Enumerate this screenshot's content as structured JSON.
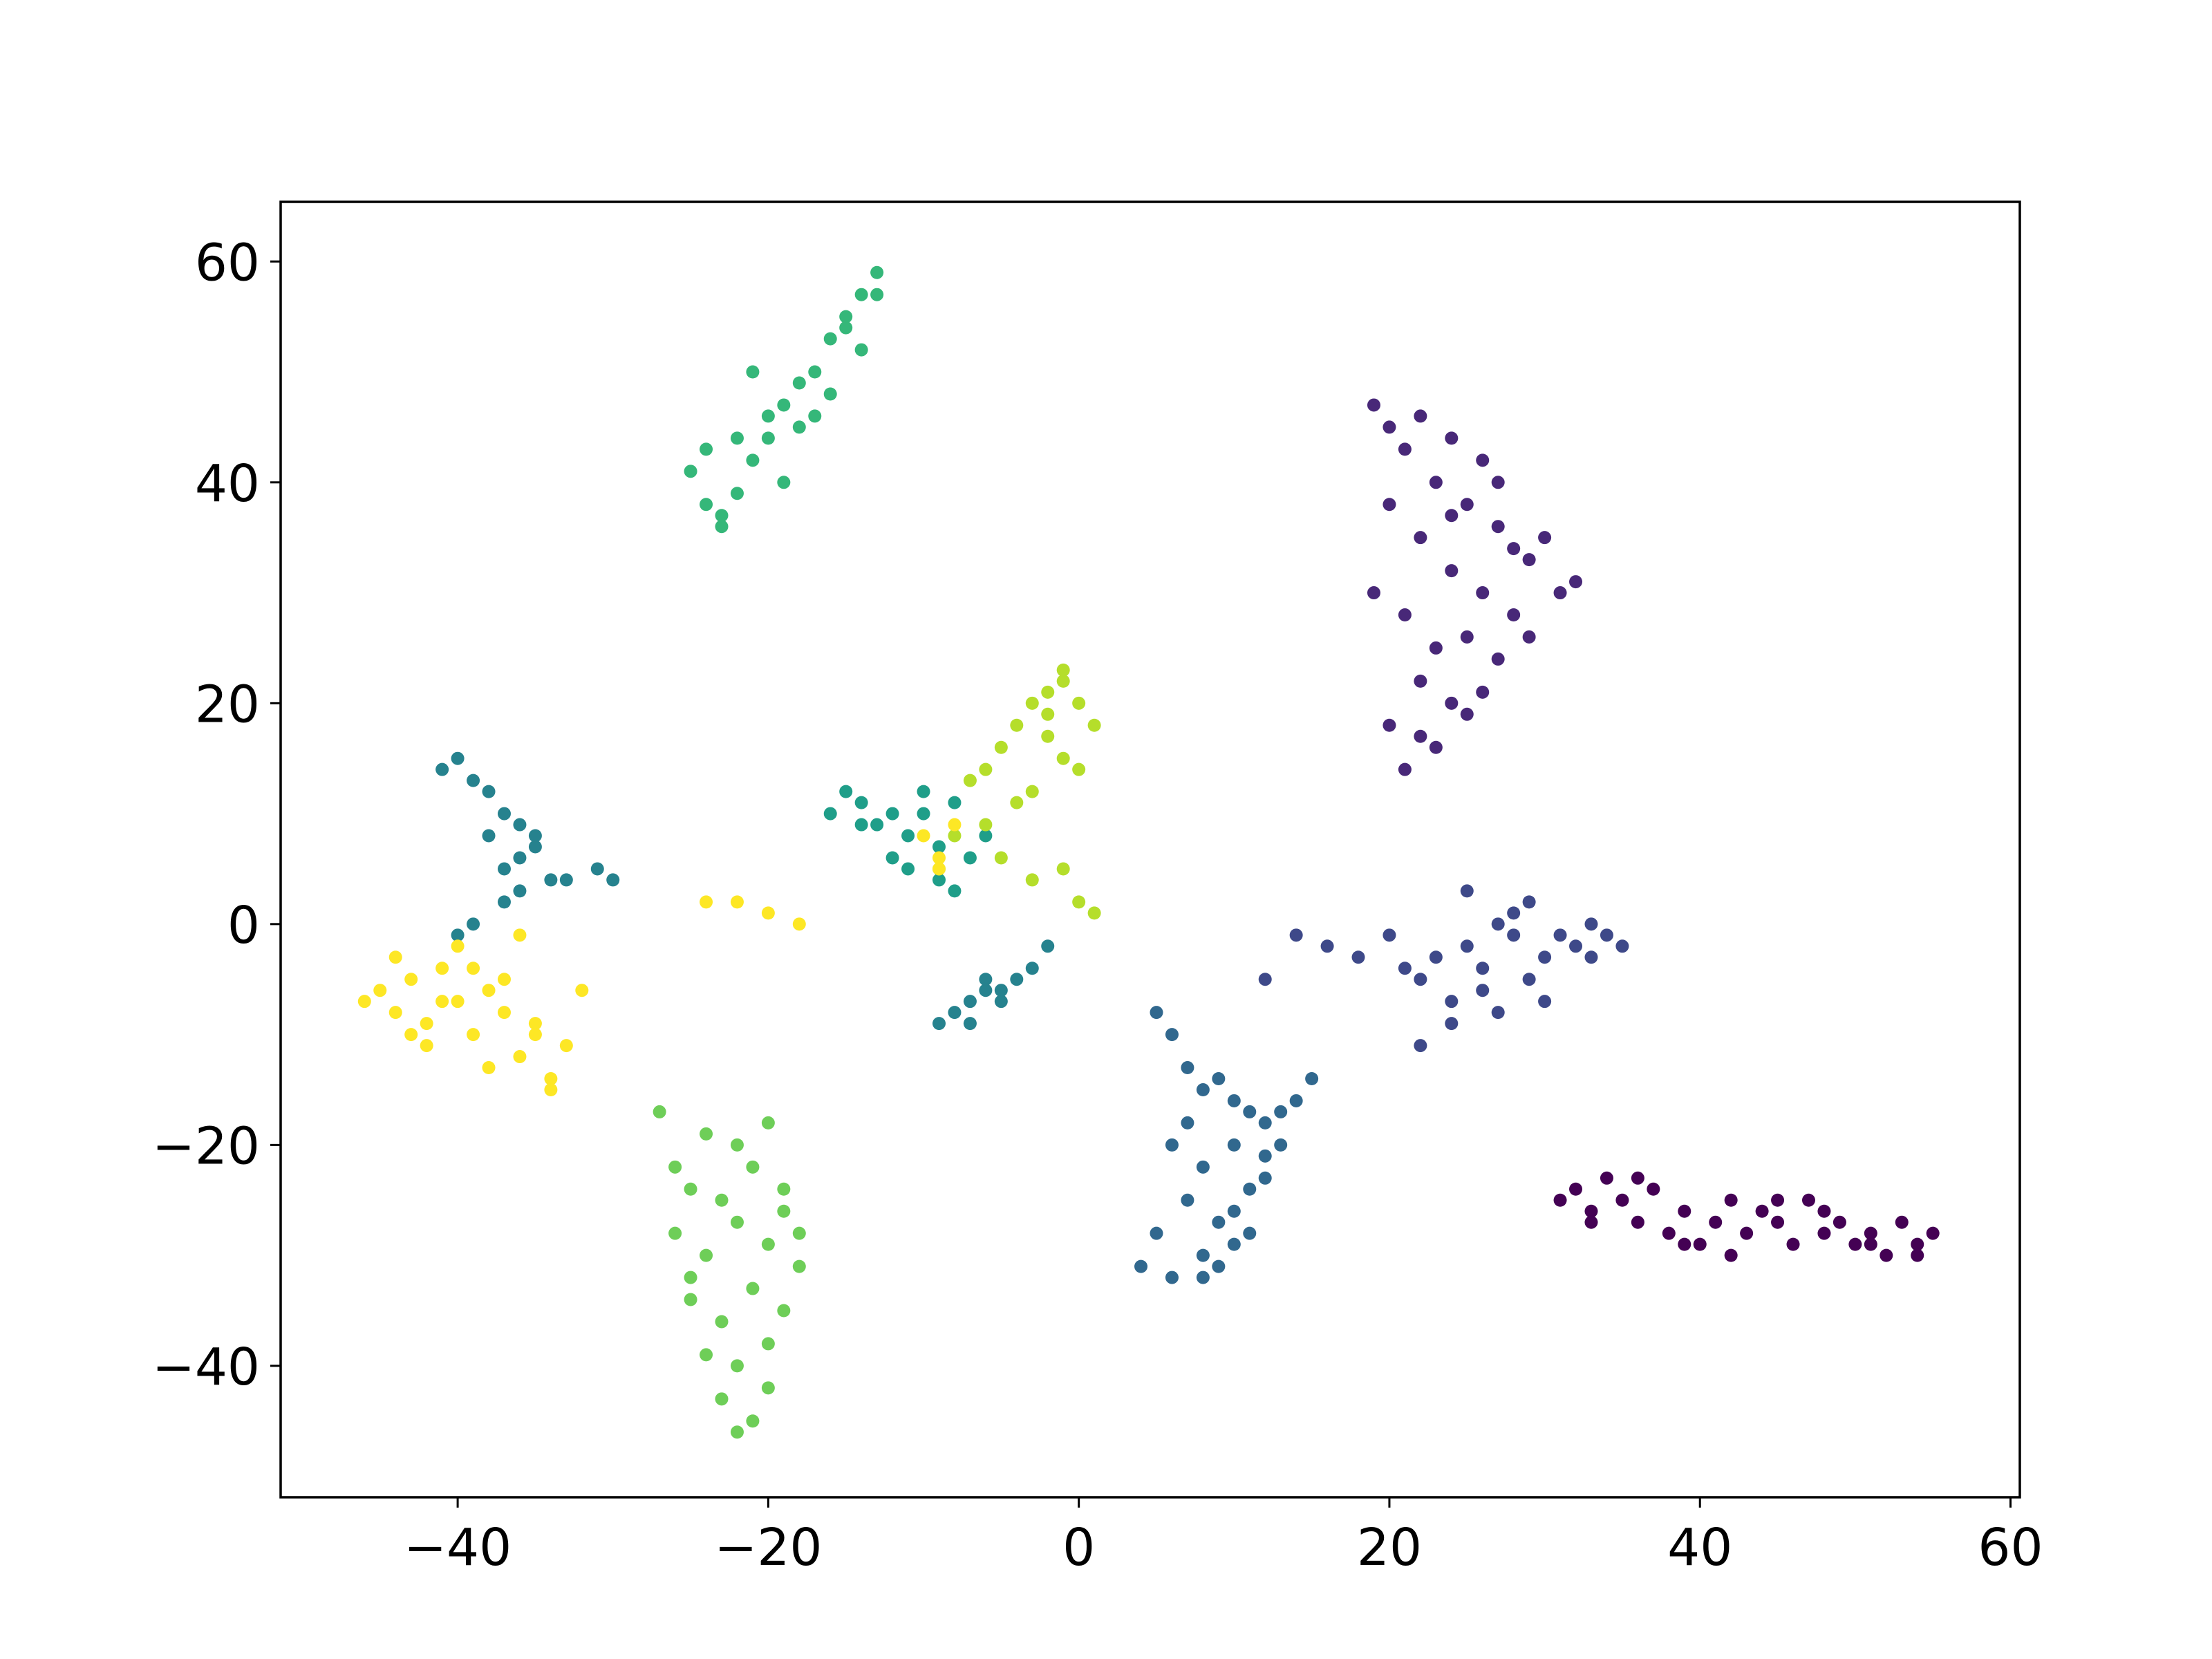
{
  "chart_data": {
    "type": "scatter",
    "xlim": [
      -51.4,
      60.6
    ],
    "ylim": [
      -51.9,
      65.4
    ],
    "xticks": [
      {
        "value": -40,
        "label": "−40"
      },
      {
        "value": -20,
        "label": "−20"
      },
      0,
      20,
      40,
      60
    ],
    "yticks": [
      {
        "value": -40,
        "label": "−40"
      },
      {
        "value": -20,
        "label": "−20"
      },
      0,
      20,
      40,
      60
    ],
    "grid": false,
    "series": [
      {
        "color": "#440154",
        "x": [
          31,
          32,
          33,
          34,
          35,
          36,
          37,
          38,
          39,
          40,
          41,
          42,
          43,
          44,
          45,
          46,
          47,
          48,
          49,
          50,
          51,
          52,
          53,
          54,
          55,
          33,
          36,
          39,
          42,
          45,
          48,
          51,
          54
        ],
        "y": [
          -25,
          -24,
          -26,
          -23,
          -25,
          -27,
          -24,
          -28,
          -26,
          -29,
          -27,
          -25,
          -28,
          -26,
          -27,
          -29,
          -25,
          -28,
          -27,
          -29,
          -28,
          -30,
          -27,
          -29,
          -28,
          -27,
          -23,
          -29,
          -30,
          -25,
          -26,
          -29,
          -30
        ]
      },
      {
        "color": "#482878",
        "x": [
          19,
          20,
          21,
          22,
          23,
          24,
          25,
          26,
          27,
          28,
          29,
          30,
          31,
          32,
          20,
          22,
          24,
          26,
          28,
          21,
          23,
          25,
          27,
          22,
          24,
          26,
          20,
          22,
          25,
          21,
          23,
          19,
          27,
          29,
          24
        ],
        "y": [
          47,
          45,
          43,
          46,
          40,
          44,
          38,
          42,
          36,
          34,
          33,
          35,
          30,
          31,
          38,
          35,
          32,
          30,
          28,
          28,
          25,
          26,
          24,
          22,
          20,
          21,
          18,
          17,
          19,
          14,
          16,
          30,
          40,
          26,
          37
        ]
      },
      {
        "color": "#3e4989",
        "x": [
          12,
          14,
          16,
          18,
          20,
          22,
          23,
          24,
          25,
          26,
          27,
          28,
          29,
          30,
          31,
          32,
          33,
          34,
          35,
          24,
          26,
          28,
          22,
          30,
          25,
          21,
          33,
          29,
          27
        ],
        "y": [
          -5,
          -1,
          -2,
          -3,
          -1,
          -5,
          -3,
          -7,
          -2,
          -4,
          0,
          -1,
          2,
          -3,
          -1,
          -2,
          -3,
          -1,
          -2,
          -9,
          -6,
          1,
          -11,
          -7,
          3,
          -4,
          0,
          -5,
          -8
        ]
      },
      {
        "color": "#31688e",
        "x": [
          5,
          6,
          7,
          8,
          9,
          10,
          11,
          12,
          13,
          14,
          15,
          6,
          8,
          10,
          12,
          7,
          9,
          11,
          5,
          8,
          10,
          4,
          6,
          9,
          11,
          7,
          13,
          10,
          8,
          12
        ],
        "y": [
          -8,
          -10,
          -13,
          -15,
          -14,
          -16,
          -17,
          -18,
          -17,
          -16,
          -14,
          -20,
          -22,
          -20,
          -21,
          -25,
          -27,
          -24,
          -28,
          -30,
          -29,
          -31,
          -32,
          -31,
          -28,
          -18,
          -20,
          -26,
          -32,
          -23
        ]
      },
      {
        "color": "#26828e",
        "x": [
          -41,
          -40,
          -39,
          -38,
          -37,
          -36,
          -35,
          -38,
          -36,
          -37,
          -35,
          -34,
          -33,
          -31,
          -30,
          -39,
          -37,
          -40,
          -36,
          -9,
          -8,
          -7,
          -6,
          -5,
          -4,
          -3,
          -2,
          -7,
          -6,
          -5
        ],
        "y": [
          14,
          15,
          13,
          12,
          10,
          9,
          8,
          8,
          6,
          5,
          7,
          4,
          4,
          5,
          4,
          0,
          2,
          -1,
          3,
          -9,
          -8,
          -7,
          -6,
          -6,
          -5,
          -4,
          -2,
          -9,
          -5,
          -7
        ]
      },
      {
        "color": "#1f9e89",
        "x": [
          -16,
          -15,
          -14,
          -13,
          -12,
          -11,
          -10,
          -9,
          -8,
          -12,
          -11,
          -9,
          -7,
          -6,
          -14,
          -10,
          -8
        ],
        "y": [
          10,
          12,
          11,
          9,
          10,
          8,
          12,
          7,
          11,
          6,
          5,
          4,
          6,
          8,
          9,
          10,
          3
        ]
      },
      {
        "color": "#35b779",
        "x": [
          -25,
          -24,
          -23,
          -22,
          -21,
          -20,
          -19,
          -18,
          -17,
          -16,
          -15,
          -14,
          -13,
          -13,
          -14,
          -16,
          -18,
          -20,
          -22,
          -24,
          -21,
          -19,
          -17,
          -15,
          -23
        ],
        "y": [
          41,
          38,
          36,
          39,
          42,
          44,
          47,
          49,
          50,
          53,
          55,
          57,
          59,
          57,
          52,
          48,
          45,
          46,
          44,
          43,
          50,
          40,
          46,
          54,
          37
        ]
      },
      {
        "color": "#6ece58",
        "x": [
          -27,
          -26,
          -25,
          -24,
          -23,
          -22,
          -21,
          -20,
          -19,
          -18,
          -26,
          -24,
          -22,
          -20,
          -18,
          -25,
          -23,
          -21,
          -19,
          -24,
          -22,
          -20,
          -23,
          -21,
          -22,
          -20,
          -25,
          -19
        ],
        "y": [
          -17,
          -22,
          -24,
          -19,
          -25,
          -20,
          -22,
          -18,
          -24,
          -28,
          -28,
          -30,
          -27,
          -29,
          -31,
          -34,
          -36,
          -33,
          -35,
          -39,
          -40,
          -38,
          -43,
          -45,
          -46,
          -42,
          -32,
          -26
        ]
      },
      {
        "color": "#b5de2b",
        "x": [
          -7,
          -6,
          -5,
          -4,
          -3,
          -2,
          -1,
          0,
          1,
          -2,
          -1,
          0,
          -3,
          -4,
          -1,
          -6,
          -5,
          -3,
          -1,
          0,
          1,
          -8,
          -9,
          -2
        ],
        "y": [
          13,
          14,
          16,
          18,
          20,
          21,
          22,
          20,
          18,
          17,
          15,
          14,
          12,
          11,
          23,
          9,
          6,
          4,
          5,
          2,
          1,
          8,
          5,
          19
        ]
      },
      {
        "color": "#fde725",
        "x": [
          -46,
          -45,
          -44,
          -43,
          -42,
          -41,
          -40,
          -39,
          -38,
          -37,
          -36,
          -35,
          -34,
          -33,
          -32,
          -44,
          -42,
          -40,
          -38,
          -36,
          -34,
          -41,
          -39,
          -37,
          -35,
          -43,
          -10,
          -9,
          -8,
          -9,
          -24,
          -22,
          -20,
          -18
        ],
        "y": [
          -7,
          -6,
          -8,
          -5,
          -9,
          -4,
          -7,
          -10,
          -6,
          -8,
          -12,
          -9,
          -14,
          -11,
          -6,
          -3,
          -11,
          -2,
          -13,
          -1,
          -15,
          -7,
          -4,
          -5,
          -10,
          -10,
          8,
          6,
          9,
          5,
          2,
          2,
          1,
          0
        ]
      }
    ]
  }
}
